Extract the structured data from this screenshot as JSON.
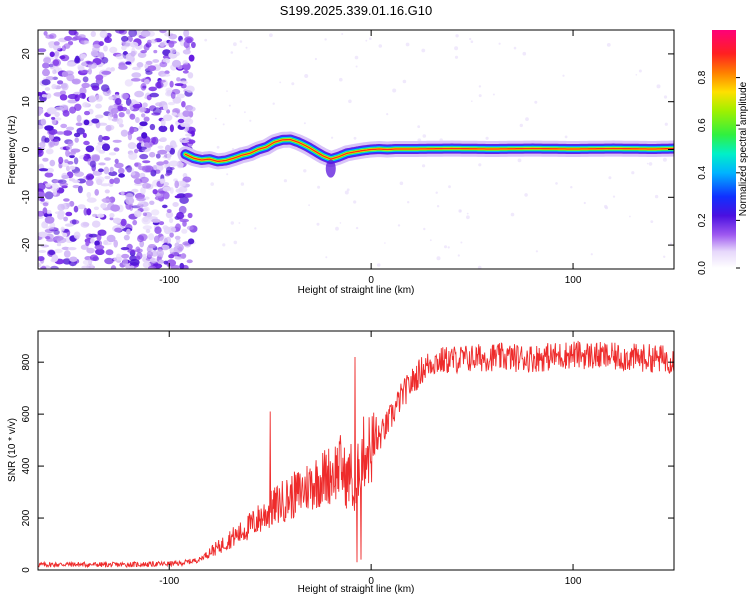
{
  "title": "S199.2025.339.01.16.G10",
  "chart_data": [
    {
      "type": "heatmap",
      "name": "spectrogram",
      "xlabel": "Height of straight line (km)",
      "ylabel": "Frequency (Hz)",
      "xlim": [
        -165,
        150
      ],
      "ylim": [
        -25,
        25
      ],
      "xticks": [
        "-100",
        "0",
        "100"
      ],
      "xtick_values": [
        -100,
        0,
        100
      ],
      "yticks": [
        "-20",
        "-10",
        "0",
        "10",
        "20"
      ],
      "ytick_values": [
        -20,
        -10,
        0,
        10,
        20
      ],
      "colorbar": {
        "label": "Normalized spectral amplitude",
        "ticks": [
          "0.0",
          "0.2",
          "0.4",
          "0.6",
          "0.8"
        ],
        "tick_values": [
          0,
          0.2,
          0.4,
          0.6,
          0.8
        ],
        "range": [
          0,
          1
        ]
      },
      "ridge": {
        "x": [
          -92,
          -88,
          -84,
          -80,
          -76,
          -72,
          -68,
          -64,
          -60,
          -56,
          -52,
          -48,
          -44,
          -40,
          -36,
          -32,
          -28,
          -24,
          -20,
          -16,
          -12,
          -8,
          -4,
          0,
          4,
          8,
          12,
          20,
          40,
          60,
          80,
          100,
          120,
          140,
          150
        ],
        "y": [
          -1.0,
          -1.8,
          -2.2,
          -2.0,
          -2.5,
          -2.3,
          -1.8,
          -1.2,
          -0.8,
          0.0,
          0.5,
          1.5,
          2.0,
          2.1,
          1.5,
          0.7,
          -0.3,
          -1.3,
          -2.0,
          -1.5,
          -0.8,
          -0.5,
          -0.2,
          0.0,
          0.1,
          0.0,
          0.1,
          0.1,
          0.2,
          0.1,
          0.2,
          0.1,
          0.2,
          0.1,
          0.2
        ],
        "noise_region_x": [
          -165,
          -88
        ]
      }
    },
    {
      "type": "line",
      "name": "snr",
      "xlabel": "Height of straight line (km)",
      "ylabel": "SNR (10 * v/v)",
      "xlim": [
        -165,
        150
      ],
      "ylim": [
        0,
        920
      ],
      "xticks": [
        "-100",
        "0",
        "100"
      ],
      "xtick_values": [
        -100,
        0,
        100
      ],
      "yticks": [
        "0",
        "200",
        "400",
        "600",
        "800"
      ],
      "ytick_values": [
        0,
        200,
        400,
        600,
        800
      ],
      "color": "#ee2b2b",
      "series": [
        {
          "name": "SNR",
          "x": [
            -165,
            -150,
            -130,
            -110,
            -95,
            -85,
            -80,
            -75,
            -70,
            -65,
            -60,
            -55,
            -50,
            -45,
            -40,
            -35,
            -30,
            -25,
            -20,
            -15,
            -12,
            -10,
            -8,
            -6,
            -4,
            0,
            5,
            10,
            15,
            20,
            25,
            30,
            40,
            60,
            80,
            100,
            120,
            140,
            150
          ],
          "y": [
            20,
            22,
            20,
            22,
            25,
            40,
            70,
            90,
            120,
            140,
            170,
            200,
            230,
            260,
            280,
            300,
            330,
            350,
            370,
            400,
            340,
            380,
            230,
            420,
            450,
            470,
            520,
            590,
            670,
            720,
            770,
            800,
            810,
            820,
            815,
            830,
            820,
            815,
            810
          ]
        }
      ],
      "spikes": [
        {
          "x": -50,
          "y": 610
        },
        {
          "x": -8,
          "y": 820
        },
        {
          "x": -7,
          "y": 30
        },
        {
          "x": -5,
          "y": 40
        }
      ]
    }
  ]
}
